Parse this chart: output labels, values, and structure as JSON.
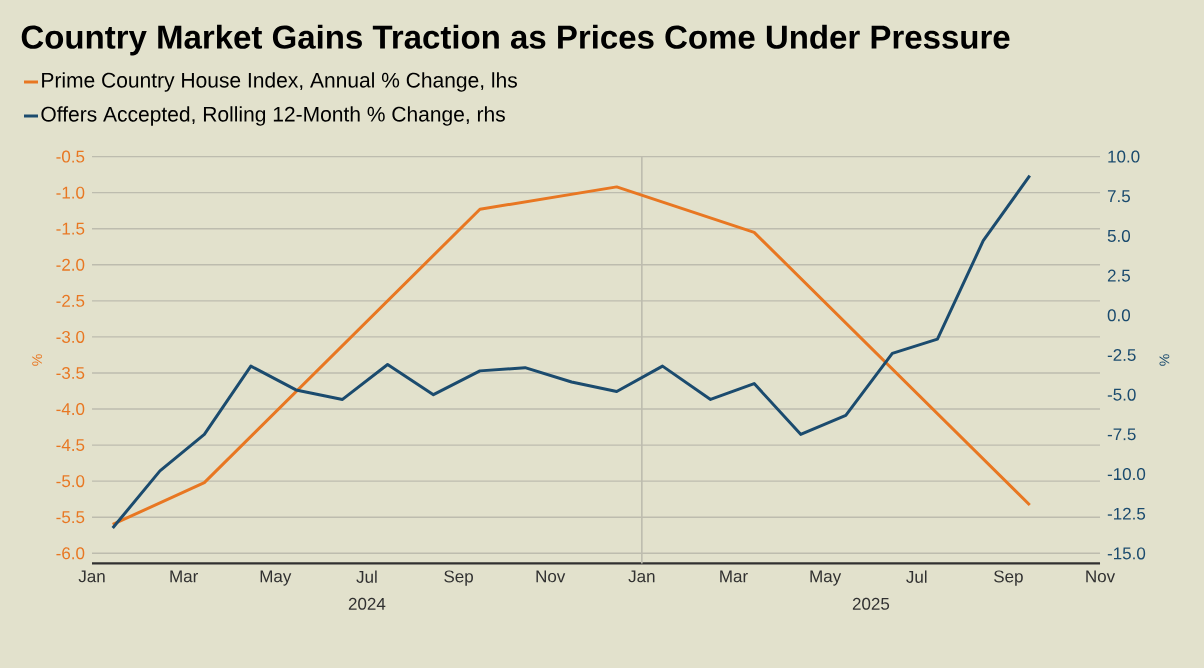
{
  "chart_data": {
    "type": "line",
    "title": "Country Market Gains Traction as Prices Come Under Pressure",
    "ylabel": "%",
    "y2label": "%",
    "series": [
      {
        "name": "Prime Country House Index, Annual % Change, lhs",
        "color": "#e87722",
        "axis": "y",
        "x": [
          "2024-01-15",
          "2024-03-15",
          "2024-09-15",
          "2024-12-15",
          "2025-03-15",
          "2025-09-15"
        ],
        "values": [
          -5.6,
          -5.02,
          -1.23,
          -0.92,
          -1.55,
          -5.33
        ]
      },
      {
        "name": "Offers Accepted, Rolling 12-Month % Change, rhs",
        "color": "#1b4b6e",
        "axis": "y2",
        "x": [
          "2024-01-15",
          "2024-02-15",
          "2024-03-15",
          "2024-04-15",
          "2024-05-15",
          "2024-06-15",
          "2024-07-15",
          "2024-08-15",
          "2024-09-15",
          "2024-10-15",
          "2024-11-15",
          "2024-12-15",
          "2025-01-15",
          "2025-02-15",
          "2025-03-15",
          "2025-04-15",
          "2025-05-15",
          "2025-06-15",
          "2025-07-15",
          "2025-08-15",
          "2025-09-15"
        ],
        "values": [
          -13.4,
          -9.8,
          -7.5,
          -3.2,
          -4.7,
          -5.3,
          -3.1,
          -5.0,
          -3.5,
          -3.3,
          -4.2,
          -4.8,
          -3.2,
          -5.3,
          -4.3,
          -7.5,
          -6.3,
          -2.4,
          -1.5,
          4.7,
          8.8
        ]
      }
    ],
    "xlim": [
      "2024-01-01",
      "2025-11-01"
    ],
    "xticks": [
      {
        "value": "2024-01-01",
        "label": "Jan"
      },
      {
        "value": "2024-03-01",
        "label": "Mar"
      },
      {
        "value": "2024-05-01",
        "label": "May"
      },
      {
        "value": "2024-07-01",
        "label": "Jul"
      },
      {
        "value": "2024-09-01",
        "label": "Sep"
      },
      {
        "value": "2024-11-01",
        "label": "Nov"
      },
      {
        "value": "2025-01-01",
        "label": "Jan"
      },
      {
        "value": "2025-03-01",
        "label": "Mar"
      },
      {
        "value": "2025-05-01",
        "label": "May"
      },
      {
        "value": "2025-07-01",
        "label": "Jul"
      },
      {
        "value": "2025-09-01",
        "label": "Sep"
      },
      {
        "value": "2025-11-01",
        "label": "Nov"
      }
    ],
    "ylim": [
      -6.14,
      -0.5
    ],
    "yticks": [
      {
        "value": -0.5,
        "label": "-0.5"
      },
      {
        "value": -1,
        "label": "-1.0"
      },
      {
        "value": -1.5,
        "label": "-1.5"
      },
      {
        "value": -2,
        "label": "-2.0"
      },
      {
        "value": -2.5,
        "label": "-2.5"
      },
      {
        "value": -3,
        "label": "-3.0"
      },
      {
        "value": -3.5,
        "label": "-3.5"
      },
      {
        "value": -4,
        "label": "-4.0"
      },
      {
        "value": -4.5,
        "label": "-4.5"
      },
      {
        "value": -5,
        "label": "-5.0"
      },
      {
        "value": -5.5,
        "label": "-5.5"
      },
      {
        "value": -6,
        "label": "-6.0"
      }
    ],
    "y2lim": [
      -15.63,
      10
    ],
    "y2ticks": [
      {
        "value": 10,
        "label": "10.0"
      },
      7.5,
      {
        "value": 5,
        "label": "5.0"
      },
      2.5,
      {
        "value": 0,
        "label": "0.0"
      },
      -2.5,
      {
        "value": -5,
        "label": "-5.0"
      },
      -7.5,
      {
        "value": -10,
        "label": "-10.0"
      },
      -12.5,
      {
        "value": -15,
        "label": "-15.0"
      }
    ],
    "ref_lines": [
      {
        "axis": "x",
        "value": "2025-01-01",
        "color": "#bdbcae"
      }
    ],
    "annotations": [
      "2024",
      "2025"
    ],
    "grid": "y",
    "legend": "top left",
    "line_style": "solid"
  }
}
